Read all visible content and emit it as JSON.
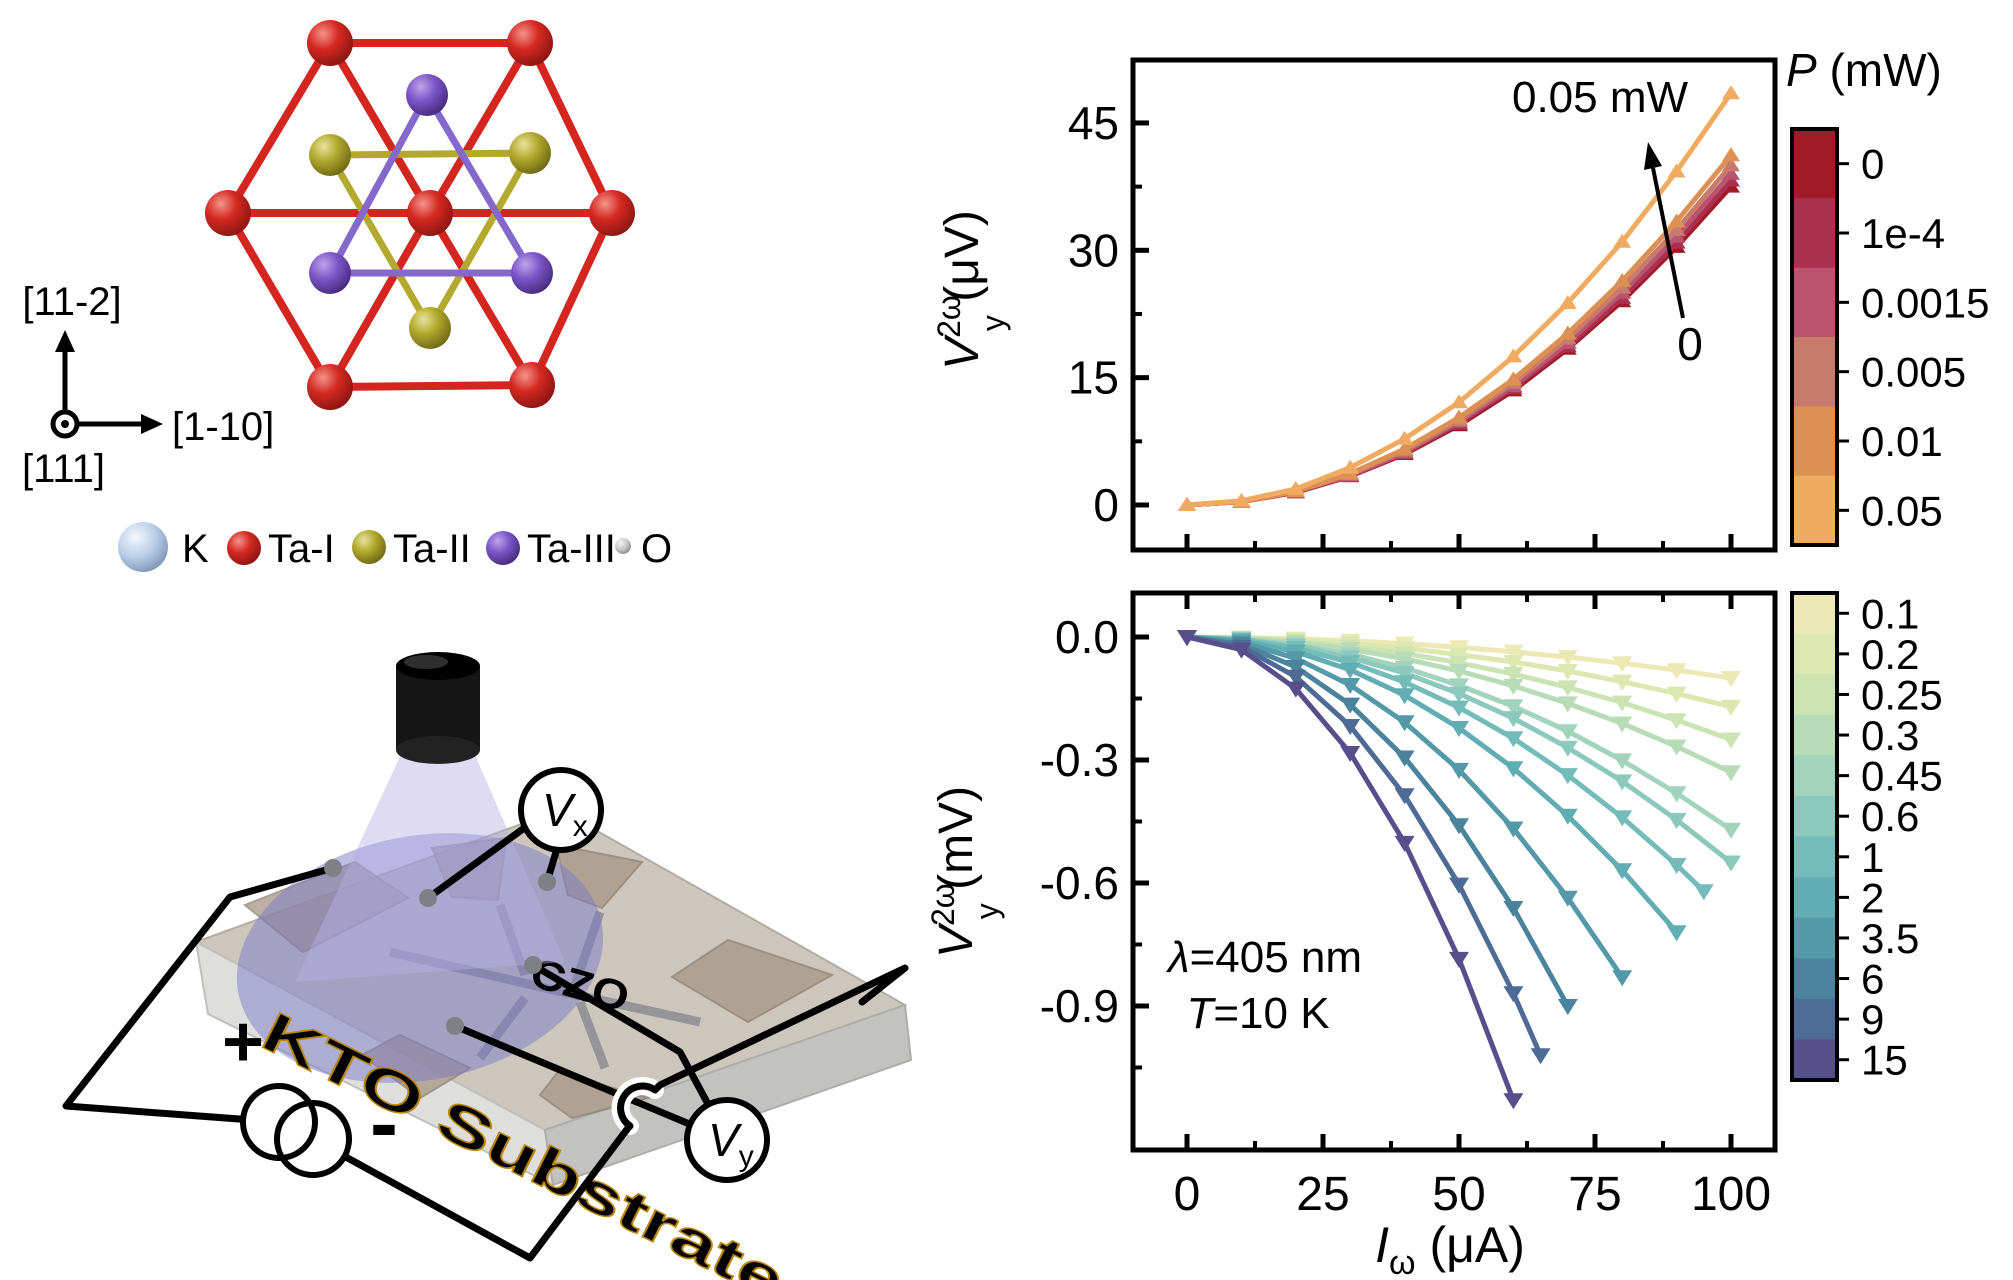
{
  "crystal": {
    "axis_labels": {
      "up": "[11-2]",
      "right": "[1-10]",
      "normal": "[111]"
    },
    "legend": [
      {
        "label": "K",
        "color": "#b8cde6",
        "r": 25
      },
      {
        "label": "Ta-I",
        "color": "#cf2520",
        "r": 17
      },
      {
        "label": "Ta-II",
        "color": "#b3a92e",
        "r": 17
      },
      {
        "label": "Ta-III",
        "color": "#7e57c8",
        "r": 17
      },
      {
        "label": "O",
        "color": "#c9c9c9",
        "r": 8
      }
    ],
    "bond_colors": {
      "ta1": "#d4251f",
      "ta2": "#b3a92e",
      "ta3": "#8468cb"
    }
  },
  "device": {
    "substrate_label": "KTO Substrate",
    "film_label": "CZO",
    "meter_x": {
      "sym": "V",
      "sub": "x"
    },
    "meter_y": {
      "sym": "V",
      "sub": "y"
    },
    "source_plus": "+",
    "source_minus": "-"
  },
  "chart_data": [
    {
      "id": "top",
      "type": "line",
      "ylabel": {
        "sym": "V",
        "sup": "2ω",
        "sub": "y",
        "unit": " (μV)"
      },
      "xlim": [
        -10,
        108
      ],
      "ylim": [
        -5.3,
        52.4
      ],
      "xticks": [
        0,
        25,
        50,
        75,
        100
      ],
      "xminors": [
        12.5,
        37.5,
        62.5,
        87.5
      ],
      "yticks": [
        0,
        15,
        30,
        45
      ],
      "yticklabels": [
        "0",
        "15",
        "30",
        "45"
      ],
      "yminors": [
        7.5,
        22.5,
        37.5
      ],
      "grid": false,
      "legend_position": "right-colorbar",
      "colorbar": {
        "title_sym": "P",
        "title_unit": " (mW)",
        "labels": [
          "0",
          "1e-4",
          "0.0015",
          "0.005",
          "0.01",
          "0.05"
        ],
        "colors": [
          "#9f1b28",
          "#ab2f4f",
          "#b9536f",
          "#c87a6d",
          "#dd9052",
          "#f0ab61"
        ]
      },
      "annotations": {
        "arrow_label": "0.05 mW",
        "arrow_base_label": "0"
      },
      "marker": "triangle-up",
      "series": [
        {
          "name": "0",
          "color": "#9f1b28",
          "x": [
            0,
            10,
            20,
            30,
            40,
            50,
            60,
            70,
            80,
            90,
            100
          ],
          "y": [
            0,
            0.4,
            1.5,
            3.4,
            6.0,
            9.4,
            13.5,
            18.4,
            24.0,
            30.4,
            37.5
          ]
        },
        {
          "name": "1e-4",
          "color": "#ab2f4f",
          "x": [
            0,
            10,
            20,
            30,
            40,
            50,
            60,
            70,
            80,
            90,
            100
          ],
          "y": [
            0,
            0.4,
            1.5,
            3.4,
            6.1,
            9.6,
            13.8,
            18.7,
            24.4,
            30.9,
            38.2
          ]
        },
        {
          "name": "0.0015",
          "color": "#b9536f",
          "x": [
            0,
            10,
            20,
            30,
            40,
            50,
            60,
            70,
            80,
            90,
            100
          ],
          "y": [
            0,
            0.4,
            1.6,
            3.5,
            6.2,
            9.8,
            14.0,
            19.1,
            25.0,
            31.6,
            39.0
          ]
        },
        {
          "name": "0.005",
          "color": "#c87a6d",
          "x": [
            0,
            10,
            20,
            30,
            40,
            50,
            60,
            70,
            80,
            90,
            100
          ],
          "y": [
            0,
            0.4,
            1.6,
            3.6,
            6.4,
            10.0,
            14.4,
            19.6,
            25.6,
            32.4,
            40.0
          ]
        },
        {
          "name": "0.01",
          "color": "#dd9052",
          "x": [
            0,
            10,
            20,
            30,
            40,
            50,
            60,
            70,
            80,
            90,
            100
          ],
          "y": [
            0,
            0.4,
            1.6,
            3.7,
            6.6,
            10.3,
            14.8,
            20.2,
            26.4,
            33.4,
            41.2
          ]
        },
        {
          "name": "0.05",
          "color": "#f0ab61",
          "x": [
            0,
            10,
            20,
            30,
            40,
            50,
            60,
            70,
            80,
            90,
            100
          ],
          "y": [
            0,
            0.5,
            1.9,
            4.4,
            7.8,
            12.1,
            17.5,
            23.8,
            31.0,
            39.3,
            48.5
          ]
        }
      ]
    },
    {
      "id": "bottom",
      "type": "line",
      "xlabel": {
        "sym": "I",
        "sub": "ω",
        "unit": " (μA)"
      },
      "ylabel": {
        "sym": "V",
        "sup": "2ω",
        "sub": "y",
        "unit": " (mV)"
      },
      "xlim": [
        -10,
        108
      ],
      "ylim": [
        -1.25,
        0.107
      ],
      "xticks": [
        0,
        25,
        50,
        75,
        100
      ],
      "xticklabels": [
        "0",
        "25",
        "50",
        "75",
        "100"
      ],
      "xminors": [
        12.5,
        37.5,
        62.5,
        87.5
      ],
      "yticks": [
        0.0,
        -0.3,
        -0.6,
        -0.9
      ],
      "yticklabels": [
        "0.0",
        "-0.3",
        "-0.6",
        "-0.9"
      ],
      "yminors": [
        -0.15,
        -0.45,
        -0.75,
        -1.05
      ],
      "grid": false,
      "legend_position": "right-colorbar",
      "colorbar": {
        "labels": [
          "0.1",
          "0.2",
          "0.25",
          "0.3",
          "0.45",
          "0.6",
          "1",
          "2",
          "3.5",
          "6",
          "9",
          "15"
        ],
        "colors": [
          "#ece9b4",
          "#dde8b0",
          "#cce3b3",
          "#b9dcb8",
          "#a2d3bd",
          "#8bc9bd",
          "#73bcba",
          "#60adb3",
          "#5399a8",
          "#4b839d",
          "#4d6b95",
          "#564f8c"
        ]
      },
      "annotations": {
        "line1_sym": "λ",
        "line1_rest": "=405 nm",
        "line2_sym": "T",
        "line2_rest": "=10 K"
      },
      "marker": "triangle-down",
      "series": [
        {
          "name": "0.1",
          "color": "#ece9b4",
          "x": [
            0,
            10,
            20,
            30,
            40,
            50,
            60,
            70,
            80,
            90,
            100
          ],
          "y": [
            0,
            -0.001,
            -0.004,
            -0.009,
            -0.016,
            -0.025,
            -0.036,
            -0.049,
            -0.064,
            -0.081,
            -0.1
          ]
        },
        {
          "name": "0.2",
          "color": "#dde8b0",
          "x": [
            0,
            10,
            20,
            30,
            40,
            50,
            60,
            70,
            80,
            90,
            100
          ],
          "y": [
            0,
            -0.002,
            -0.007,
            -0.015,
            -0.027,
            -0.043,
            -0.061,
            -0.083,
            -0.109,
            -0.138,
            -0.17
          ]
        },
        {
          "name": "0.25",
          "color": "#cce3b3",
          "x": [
            0,
            10,
            20,
            30,
            40,
            50,
            60,
            70,
            80,
            90,
            100
          ],
          "y": [
            0,
            -0.003,
            -0.01,
            -0.023,
            -0.04,
            -0.063,
            -0.09,
            -0.123,
            -0.16,
            -0.203,
            -0.25
          ]
        },
        {
          "name": "0.3",
          "color": "#b9dcb8",
          "x": [
            0,
            10,
            20,
            30,
            40,
            50,
            60,
            70,
            80,
            90,
            100
          ],
          "y": [
            0,
            -0.003,
            -0.013,
            -0.03,
            -0.053,
            -0.083,
            -0.119,
            -0.162,
            -0.211,
            -0.267,
            -0.33
          ]
        },
        {
          "name": "0.45",
          "color": "#a2d3bd",
          "x": [
            0,
            10,
            20,
            30,
            40,
            50,
            60,
            70,
            80,
            90,
            100
          ],
          "y": [
            0,
            -0.005,
            -0.019,
            -0.042,
            -0.075,
            -0.118,
            -0.169,
            -0.23,
            -0.301,
            -0.381,
            -0.47
          ]
        },
        {
          "name": "0.6",
          "color": "#8bc9bd",
          "x": [
            0,
            10,
            20,
            30,
            40,
            50,
            60,
            70,
            80,
            90,
            100
          ],
          "y": [
            0,
            -0.006,
            -0.022,
            -0.05,
            -0.088,
            -0.138,
            -0.198,
            -0.27,
            -0.352,
            -0.446,
            -0.55
          ]
        },
        {
          "name": "1",
          "color": "#73bcba",
          "x": [
            0,
            10,
            20,
            30,
            40,
            50,
            60,
            70,
            80,
            90,
            95
          ],
          "y": [
            0,
            -0.007,
            -0.027,
            -0.062,
            -0.11,
            -0.172,
            -0.247,
            -0.337,
            -0.44,
            -0.556,
            -0.62
          ]
        },
        {
          "name": "2",
          "color": "#60adb3",
          "x": [
            0,
            10,
            20,
            30,
            40,
            50,
            60,
            70,
            80,
            90
          ],
          "y": [
            0,
            -0.009,
            -0.036,
            -0.08,
            -0.142,
            -0.222,
            -0.32,
            -0.436,
            -0.569,
            -0.72
          ]
        },
        {
          "name": "3.5",
          "color": "#5399a8",
          "x": [
            0,
            10,
            20,
            30,
            40,
            50,
            60,
            70,
            80
          ],
          "y": [
            0,
            -0.013,
            -0.052,
            -0.117,
            -0.208,
            -0.324,
            -0.467,
            -0.636,
            -0.83
          ]
        },
        {
          "name": "6",
          "color": "#4b839d",
          "x": [
            0,
            10,
            20,
            30,
            40,
            50,
            60,
            70
          ],
          "y": [
            0,
            -0.018,
            -0.073,
            -0.165,
            -0.294,
            -0.459,
            -0.661,
            -0.9
          ]
        },
        {
          "name": "9",
          "color": "#4d6b95",
          "x": [
            0,
            10,
            20,
            30,
            40,
            50,
            60,
            65
          ],
          "y": [
            0,
            -0.024,
            -0.097,
            -0.217,
            -0.386,
            -0.604,
            -0.869,
            -1.02
          ]
        },
        {
          "name": "15",
          "color": "#564f8c",
          "x": [
            0,
            10,
            20,
            30,
            40,
            50,
            60
          ],
          "y": [
            0,
            -0.031,
            -0.126,
            -0.283,
            -0.502,
            -0.785,
            -1.13
          ]
        }
      ]
    }
  ]
}
